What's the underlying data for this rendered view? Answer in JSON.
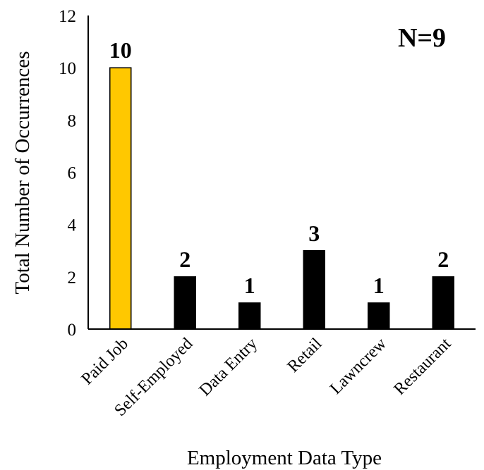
{
  "chart_data": {
    "type": "bar",
    "title": "",
    "annotation": "N=9",
    "xlabel": "Employment Data Type",
    "ylabel": "Total Number of Occurrences",
    "ylim": [
      0,
      12
    ],
    "yticks": [
      "0",
      "2",
      "4",
      "6",
      "8",
      "10",
      "12"
    ],
    "categories": [
      "Paid Job",
      "Self-Employed",
      "Data Entry",
      "Retail",
      "Lawncrew",
      "Restaurant"
    ],
    "values": [
      10,
      2,
      1,
      3,
      1,
      2
    ],
    "colors": [
      "#FFC800",
      "#000000",
      "#000000",
      "#000000",
      "#000000",
      "#000000"
    ],
    "grid": false,
    "legend": "none"
  }
}
